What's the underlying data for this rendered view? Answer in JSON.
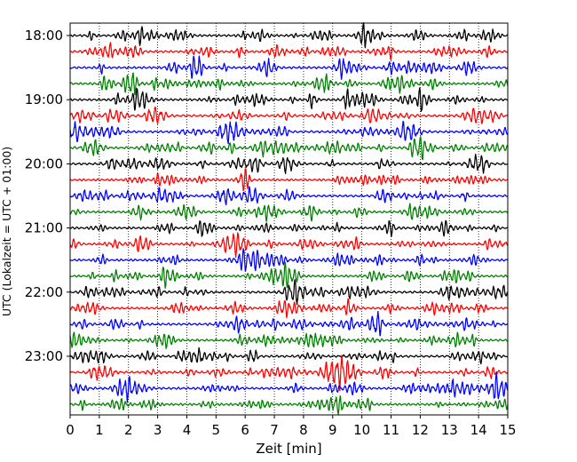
{
  "chart_data": {
    "type": "line",
    "title": "",
    "xlabel": "Zeit  [min]",
    "ylabel": "UTC (Lokalzeit = UTC + 01:00)",
    "xlim": [
      0,
      15
    ],
    "x_ticks": [
      "0",
      "1",
      "2",
      "3",
      "4",
      "5",
      "6",
      "7",
      "8",
      "9",
      "10",
      "11",
      "12",
      "13",
      "14",
      "15"
    ],
    "y_ticks": [
      "18:00",
      "19:00",
      "20:00",
      "21:00",
      "22:00",
      "23:00"
    ],
    "grid": "vertical dotted",
    "trace_colors": [
      "#000000",
      "#ff0000",
      "#0000ff",
      "#008000"
    ],
    "traces_per_hour": 4,
    "start_time": "18:00",
    "end_time": "24:00",
    "series": [
      {
        "color": "#000000",
        "start": "18:00"
      },
      {
        "color": "#ff0000",
        "start": "18:15"
      },
      {
        "color": "#0000ff",
        "start": "18:30"
      },
      {
        "color": "#008000",
        "start": "18:45"
      },
      {
        "color": "#000000",
        "start": "19:00"
      },
      {
        "color": "#ff0000",
        "start": "19:15"
      },
      {
        "color": "#0000ff",
        "start": "19:30"
      },
      {
        "color": "#008000",
        "start": "19:45"
      },
      {
        "color": "#000000",
        "start": "20:00"
      },
      {
        "color": "#ff0000",
        "start": "20:15"
      },
      {
        "color": "#0000ff",
        "start": "20:30"
      },
      {
        "color": "#008000",
        "start": "20:45"
      },
      {
        "color": "#000000",
        "start": "21:00"
      },
      {
        "color": "#ff0000",
        "start": "21:15"
      },
      {
        "color": "#0000ff",
        "start": "21:30"
      },
      {
        "color": "#008000",
        "start": "21:45"
      },
      {
        "color": "#000000",
        "start": "22:00"
      },
      {
        "color": "#ff0000",
        "start": "22:15"
      },
      {
        "color": "#0000ff",
        "start": "22:30"
      },
      {
        "color": "#008000",
        "start": "22:45"
      },
      {
        "color": "#000000",
        "start": "23:00"
      },
      {
        "color": "#ff0000",
        "start": "23:15"
      },
      {
        "color": "#0000ff",
        "start": "23:30"
      },
      {
        "color": "#008000",
        "start": "23:45"
      }
    ]
  }
}
